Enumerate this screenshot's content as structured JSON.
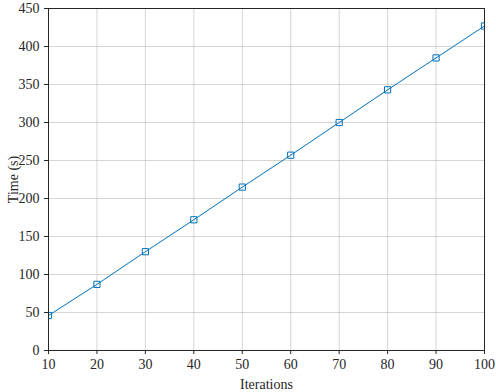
{
  "chart_data": {
    "type": "line",
    "x": [
      10,
      20,
      30,
      40,
      50,
      60,
      70,
      80,
      90,
      100
    ],
    "values": [
      46,
      87,
      130,
      172,
      215,
      257,
      300,
      343,
      385,
      427
    ],
    "color": "#0072bd",
    "marker": "square",
    "xlabel": "Iterations",
    "ylabel": "Time (s)",
    "xlim": [
      10,
      100
    ],
    "xticks": [
      10,
      20,
      30,
      40,
      50,
      60,
      70,
      80,
      90,
      100
    ],
    "ylim": [
      0,
      450
    ],
    "yticks": [
      0,
      50,
      100,
      150,
      200,
      250,
      300,
      350,
      400,
      450
    ],
    "grid": true
  }
}
